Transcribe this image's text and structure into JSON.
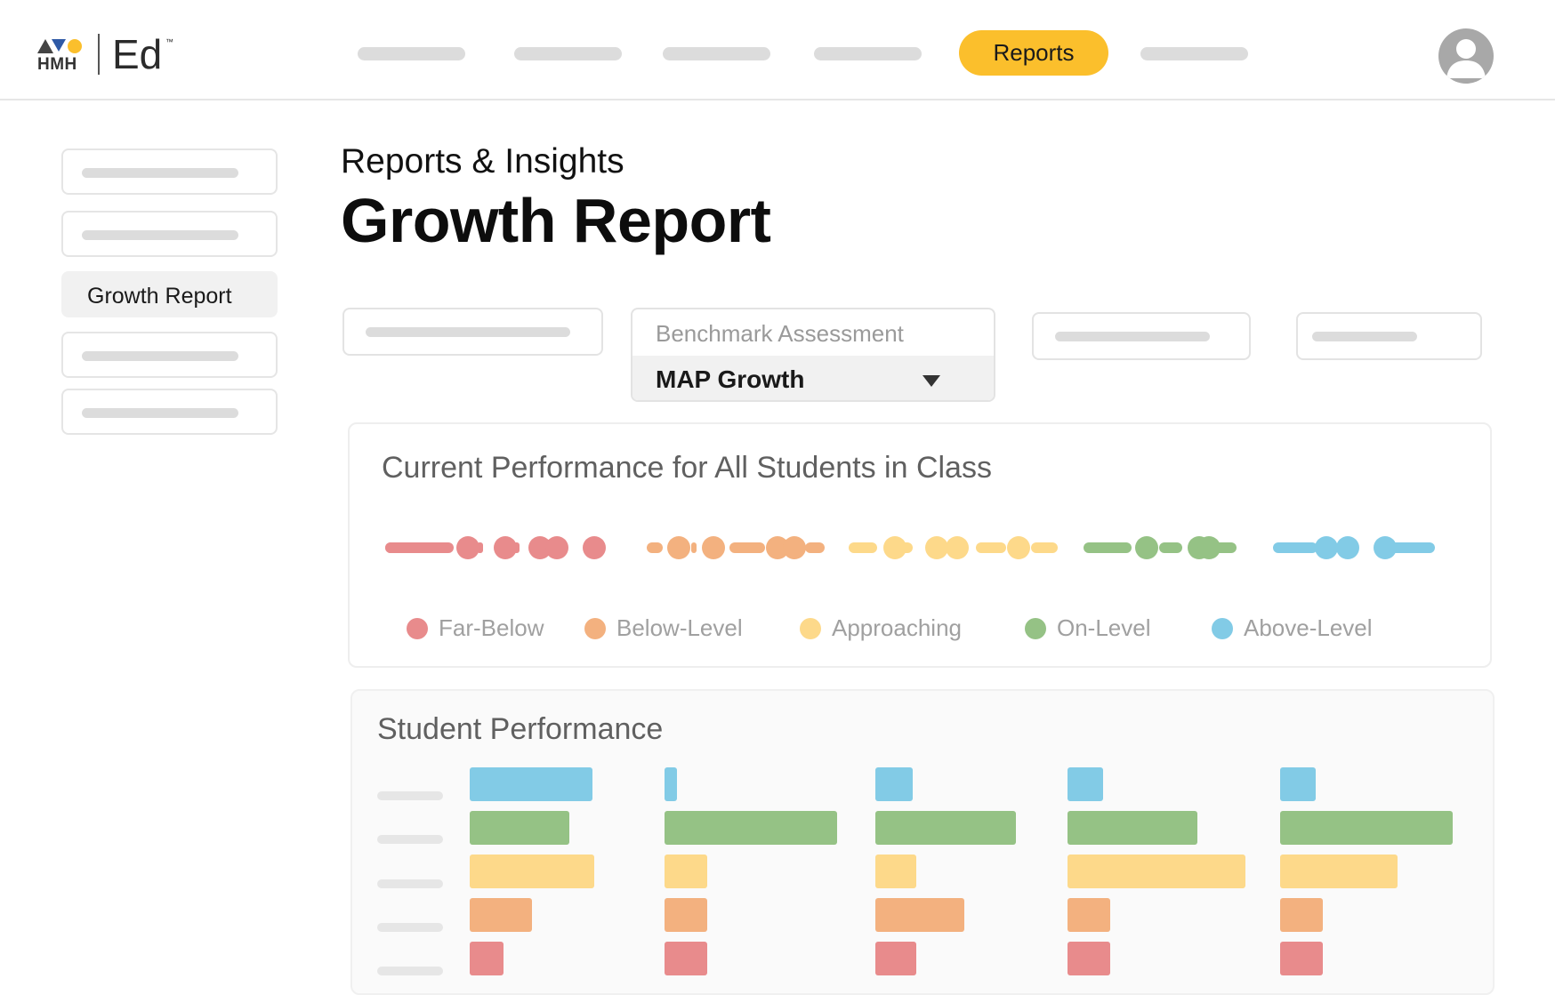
{
  "brand": {
    "publisher": "HMH",
    "product": "Ed",
    "trademark": "™",
    "colors": {
      "triangle": "#444444",
      "yellow": "#fbbf2c",
      "blue": "#2f5aa6"
    }
  },
  "header": {
    "reports_tab_label": "Reports",
    "accent": "#fbbf2c",
    "avatar_icon": "user-avatar-icon"
  },
  "sidebar": {
    "active_item_label": "Growth Report"
  },
  "page": {
    "subtitle": "Reports & Insights",
    "title": "Growth Report"
  },
  "filters": {
    "assessment_label": "Benchmark Assessment",
    "assessment_value": "MAP Growth",
    "caret_icon": "caret-down-icon"
  },
  "current_performance": {
    "title": "Current Performance for All Students in Class",
    "legend": [
      {
        "label": "Far-Below",
        "color": "#e88b8c"
      },
      {
        "label": "Below-Level",
        "color": "#f3b17f"
      },
      {
        "label": "Approaching",
        "color": "#fdd98a"
      },
      {
        "label": "On-Level",
        "color": "#95c285"
      },
      {
        "label": "Above-Level",
        "color": "#82cbe6"
      }
    ]
  },
  "student_performance": {
    "title": "Student Performance",
    "level_colors": [
      "#82cbe6",
      "#95c285",
      "#fdd98a",
      "#f3b17f",
      "#e88b8c"
    ],
    "level_order": [
      "Above-Level",
      "On-Level",
      "Approaching",
      "Below-Level",
      "Far-Below"
    ]
  }
}
